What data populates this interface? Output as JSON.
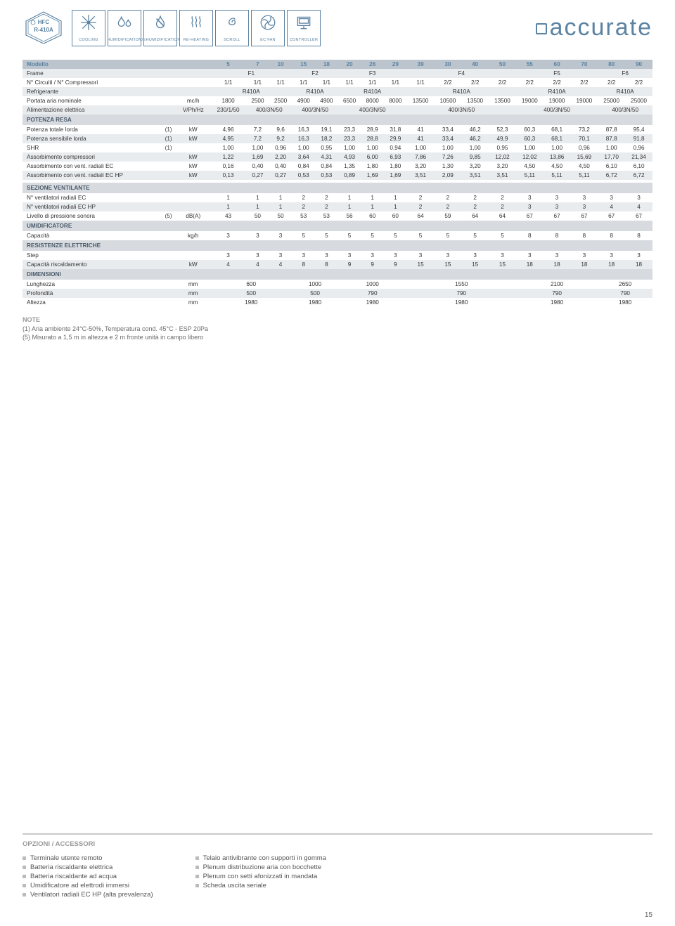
{
  "header": {
    "badge_top": "HFC",
    "badge_bottom": "R-410A",
    "icons": [
      {
        "name": "cooling-icon",
        "label": "COOLING"
      },
      {
        "name": "humidification-icon",
        "label": "HUMIDIFICATION"
      },
      {
        "name": "dehumidification-icon",
        "label": "DEHUMIDIFICATION"
      },
      {
        "name": "reheating-icon",
        "label": "RE-HEATING"
      },
      {
        "name": "scroll-icon",
        "label": "SCROLL"
      },
      {
        "name": "ecfan-icon",
        "label": "EC FAN"
      },
      {
        "name": "controller-icon",
        "label": "CONTROLLER"
      }
    ],
    "logo": "accurate"
  },
  "columns": [
    "5",
    "7",
    "10",
    "15",
    "18",
    "20",
    "26",
    "29",
    "39",
    "30",
    "40",
    "50",
    "55",
    "60",
    "70",
    "80",
    "90"
  ],
  "spec": {
    "modello_label": "Modello",
    "frame_label": "Frame",
    "frames": [
      "F1",
      "F2",
      "F3",
      "F4",
      "F5",
      "F6"
    ],
    "frame_spans": [
      3,
      2,
      3,
      4,
      3,
      2
    ],
    "circuiti_label": "N° Circuiti / N° Compressori",
    "circuiti": [
      "1/1",
      "1/1",
      "1/1",
      "1/1",
      "1/1",
      "1/1",
      "1/1",
      "1/1",
      "1/1",
      "2/2",
      "2/2",
      "2/2",
      "2/2",
      "2/2",
      "2/2",
      "2/2",
      "2/2"
    ],
    "refrigerante_label": "Refrigerante",
    "refrigerante": "R410A",
    "refrigerante_spans": [
      3,
      2,
      3,
      4,
      3,
      2
    ],
    "portata_label": "Portata aria nominale",
    "portata_unit": "mc/h",
    "portata": [
      "1800",
      "2500",
      "2500",
      "4900",
      "4900",
      "6500",
      "8000",
      "8000",
      "13500",
      "10500",
      "13500",
      "13500",
      "19000",
      "19000",
      "19000",
      "25000",
      "25000"
    ],
    "alimentazione_label": "Alimentazione elettrica",
    "alimentazione_unit": "V/Ph/Hz",
    "alimentazione": [
      "230/1/50",
      "400/3N/50",
      "400/3N/50",
      "400/3N/50",
      "400/3N/50",
      "400/3N/50",
      "400/3N/50"
    ],
    "alimentazione_spans": [
      1,
      2,
      2,
      3,
      4,
      3,
      2
    ],
    "potenza_resa_section": "POTENZA RESA",
    "rows_potenza": [
      {
        "label": "Potenza totale lorda",
        "note": "(1)",
        "unit": "kW",
        "v": [
          "4,96",
          "7,2",
          "9,6",
          "16,3",
          "19,1",
          "23,3",
          "28,9",
          "31,8",
          "41",
          "33,4",
          "46,2",
          "52,3",
          "60,3",
          "68,1",
          "73,2",
          "87,8",
          "95,4"
        ]
      },
      {
        "label": "Potenza sensibile lorda",
        "note": "(1)",
        "unit": "kW",
        "v": [
          "4,95",
          "7,2",
          "9,2",
          "16,3",
          "18,2",
          "23,3",
          "28,8",
          "29,9",
          "41",
          "33,4",
          "46,2",
          "49,9",
          "60,3",
          "68,1",
          "70,1",
          "87,8",
          "91,8"
        ]
      },
      {
        "label": "SHR",
        "note": "(1)",
        "unit": "",
        "v": [
          "1,00",
          "1,00",
          "0,96",
          "1,00",
          "0,95",
          "1,00",
          "1,00",
          "0,94",
          "1,00",
          "1,00",
          "1,00",
          "0,95",
          "1,00",
          "1,00",
          "0,96",
          "1,00",
          "0,96"
        ]
      },
      {
        "label": "Assorbimento compressori",
        "note": "",
        "unit": "kW",
        "v": [
          "1,22",
          "1,69",
          "2,20",
          "3,64",
          "4,31",
          "4,93",
          "6,00",
          "6,93",
          "7,86",
          "7,26",
          "9,85",
          "12,02",
          "12,02",
          "13,86",
          "15,69",
          "17,70",
          "21,34"
        ]
      },
      {
        "label": "Assorbimento con vent. radiali EC",
        "note": "",
        "unit": "kW",
        "v": [
          "0,16",
          "0,40",
          "0,40",
          "0,84",
          "0,84",
          "1,35",
          "1,80",
          "1,80",
          "3,20",
          "1,30",
          "3,20",
          "3,20",
          "4,50",
          "4,50",
          "4,50",
          "6,10",
          "6,10"
        ]
      },
      {
        "label": "Assorbimento con vent. radiali EC HP",
        "note": "",
        "unit": "kW",
        "v": [
          "0,13",
          "0,27",
          "0,27",
          "0,53",
          "0,53",
          "0,89",
          "1,69",
          "1,69",
          "3,51",
          "2,09",
          "3,51",
          "3,51",
          "5,11",
          "5,11",
          "5,11",
          "6,72",
          "6,72"
        ]
      }
    ],
    "sezione_vent_section": "SEZIONE VENTILANTE",
    "rows_vent": [
      {
        "label": "N° ventilatori radiali EC",
        "note": "",
        "unit": "",
        "v": [
          "1",
          "1",
          "1",
          "2",
          "2",
          "1",
          "1",
          "1",
          "2",
          "2",
          "2",
          "2",
          "3",
          "3",
          "3",
          "3",
          "3"
        ]
      },
      {
        "label": "N° ventilatori radiali EC HP",
        "note": "",
        "unit": "",
        "v": [
          "1",
          "1",
          "1",
          "2",
          "2",
          "1",
          "1",
          "1",
          "2",
          "2",
          "2",
          "2",
          "3",
          "3",
          "3",
          "4",
          "4"
        ]
      },
      {
        "label": "Livello di pressione sonora",
        "note": "(5)",
        "unit": "dB(A)",
        "v": [
          "43",
          "50",
          "50",
          "53",
          "53",
          "56",
          "60",
          "60",
          "64",
          "59",
          "64",
          "64",
          "67",
          "67",
          "67",
          "67",
          "67"
        ]
      }
    ],
    "umidificatore_section": "UMIDIFICATORE",
    "rows_umid": [
      {
        "label": "Capacità",
        "note": "",
        "unit": "kg/h",
        "v": [
          "3",
          "3",
          "3",
          "5",
          "5",
          "5",
          "5",
          "5",
          "5",
          "5",
          "5",
          "5",
          "8",
          "8",
          "8",
          "8",
          "8"
        ]
      }
    ],
    "resistenze_section": "RESISTENZE ELETTRICHE",
    "rows_resist": [
      {
        "label": "Step",
        "note": "",
        "unit": "",
        "v": [
          "3",
          "3",
          "3",
          "3",
          "3",
          "3",
          "3",
          "3",
          "3",
          "3",
          "3",
          "3",
          "3",
          "3",
          "3",
          "3",
          "3"
        ]
      },
      {
        "label": "Capacità riscaldamento",
        "note": "",
        "unit": "kW",
        "v": [
          "4",
          "4",
          "4",
          "8",
          "8",
          "9",
          "9",
          "9",
          "15",
          "15",
          "15",
          "15",
          "18",
          "18",
          "18",
          "18",
          "18"
        ]
      }
    ],
    "dimensioni_section": "DIMENSIONI",
    "rows_dim": [
      {
        "label": "Lunghezza",
        "unit": "mm",
        "v": [
          "600",
          "1000",
          "1000",
          "1550",
          "2100",
          "2650"
        ],
        "spans": [
          3,
          2,
          3,
          4,
          3,
          2
        ]
      },
      {
        "label": "Profondità",
        "unit": "mm",
        "v": [
          "500",
          "500",
          "790",
          "790",
          "790",
          "790"
        ],
        "spans": [
          3,
          2,
          3,
          4,
          3,
          2
        ]
      },
      {
        "label": "Altezza",
        "unit": "mm",
        "v": [
          "1980",
          "1980",
          "1980",
          "1980",
          "1980",
          "1980"
        ],
        "spans": [
          3,
          2,
          3,
          4,
          3,
          2
        ]
      }
    ]
  },
  "notes": {
    "title": "NOTE",
    "lines": [
      "(1) Aria ambiente 24°C-50%, Temperatura cond. 45°C - ESP 20Pa",
      "(5) Misurato a 1,5 m in altezza e 2 m fronte unità in campo libero"
    ]
  },
  "opzioni": {
    "title": "OPZIONI / ACCESSORI",
    "left": [
      "Terminale utente remoto",
      "Batteria riscaldante elettrica",
      "Batteria riscaldante ad acqua",
      "Umidificatore ad elettrodi immersi",
      "Ventilatori radiali EC HP (alta prevalenza)"
    ],
    "right": [
      "Telaio antivibrante con supporti in gomma",
      "Plenum distribuzione aria con bocchette",
      "Plenum con setti afonizzati in mandata",
      "Scheda uscita seriale"
    ]
  },
  "pagenum": "15",
  "colors": {
    "accent": "#5b83a3",
    "section_bg": "#d7dbdf",
    "header_bg": "#bcc5cd",
    "alt_bg": "#e9ecef"
  }
}
